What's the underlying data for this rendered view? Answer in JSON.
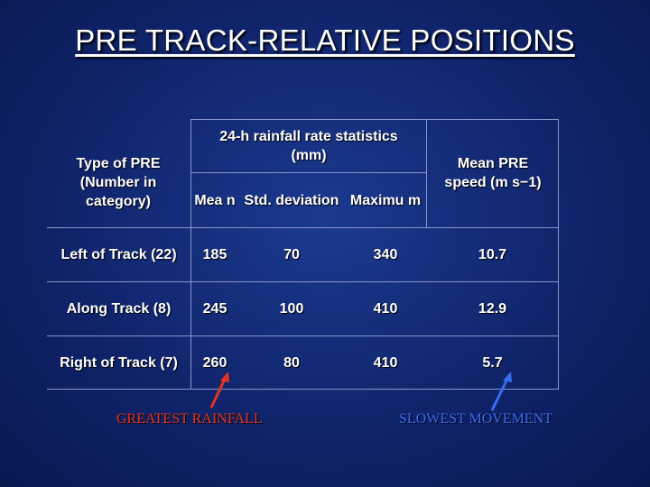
{
  "slide": {
    "title": "PRE TRACK-RELATIVE POSITIONS"
  },
  "table": {
    "header": {
      "type_label": "Type of PRE (Number in category)",
      "rain_group": "24-h rainfall rate statistics (mm)",
      "mean_label": "Mea n",
      "std_label": "Std. deviation",
      "max_label": "Maximu m",
      "speed_label": "Mean PRE speed (m s−1)"
    },
    "rows": [
      {
        "type": "Left of Track (22)",
        "mean": "185",
        "std": "70",
        "max": "340",
        "speed": "10.7"
      },
      {
        "type": "Along Track (8)",
        "mean": "245",
        "std": "100",
        "max": "410",
        "speed": "12.9"
      },
      {
        "type": "Right of Track (7)",
        "mean": "260",
        "std": "80",
        "max": "410",
        "speed": "5.7"
      }
    ]
  },
  "annotations": {
    "left_note": "GREATEST RAINFALL",
    "left_color": "#e8331f",
    "right_note": "SLOWEST MOVEMENT",
    "right_color": "#3a6cf0"
  }
}
